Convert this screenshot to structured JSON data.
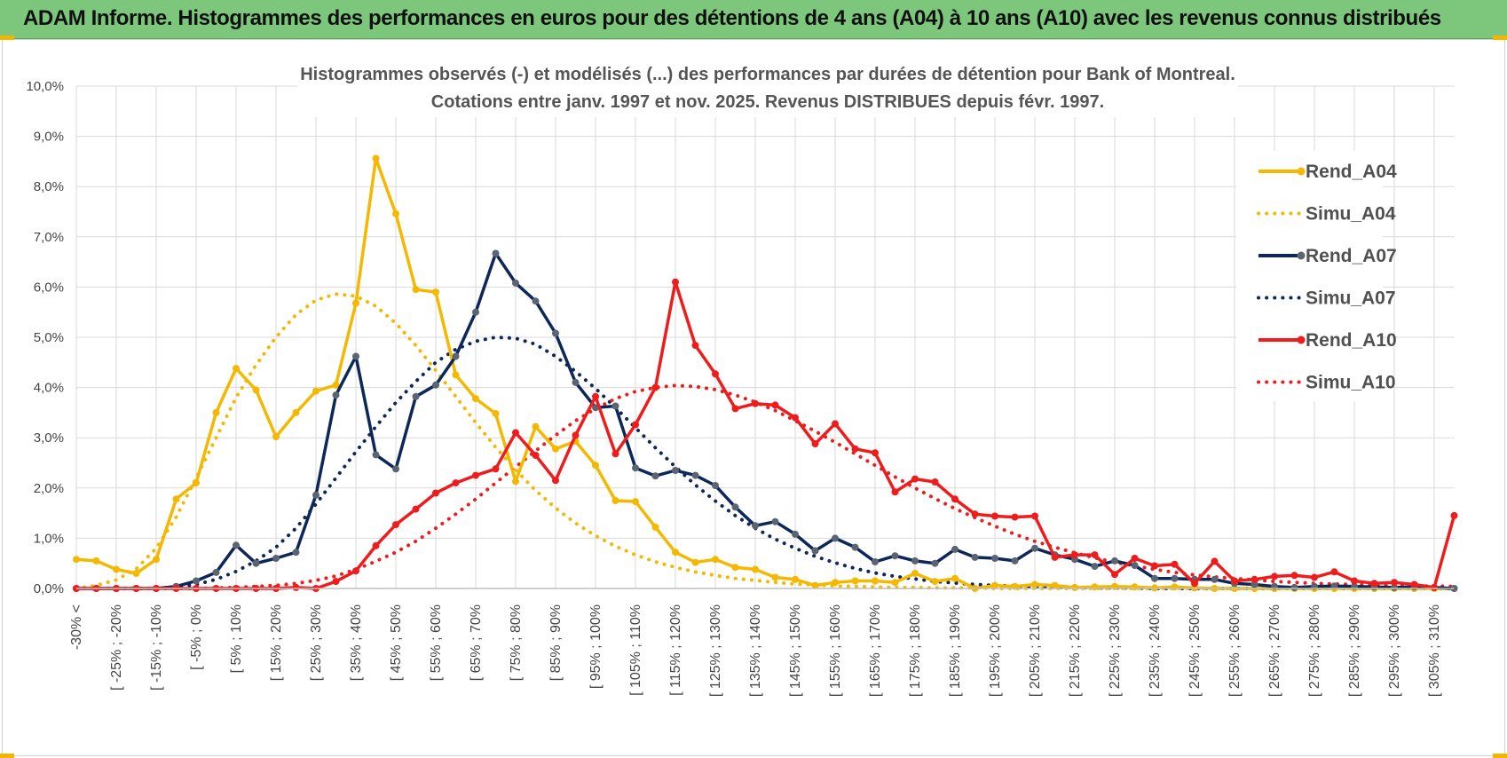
{
  "banner": {
    "title": "ADAM Informe. Histogrammes des performances en euros pour des détentions de 4 ans (A04) à 10 ans (A10) avec les revenus connus distribués",
    "background": "#7dc77d"
  },
  "chart_data": {
    "type": "line",
    "title": "Histogrammes observés (-) et modélisés (...) des performances par durées de détention pour Bank of Montreal.",
    "subtitle": "Cotations entre janv. 1997 et nov. 2025. Revenus DISTRIBUES depuis févr. 1997.",
    "xlabel": "",
    "ylabel": "",
    "ylim": [
      0,
      10
    ],
    "y_ticks": [
      "0,0%",
      "1,0%",
      "2,0%",
      "3,0%",
      "4,0%",
      "5,0%",
      "6,0%",
      "7,0%",
      "8,0%",
      "9,0%",
      "10,0%"
    ],
    "grid": true,
    "legend_position": "right",
    "x_tick_labels": [
      "-30% <",
      "[ -25% ; -20%",
      "[ -15% ; -10%",
      "[ -5% ; 0%",
      "[ 5% ; 10%",
      "[ 15% ; 20%",
      "[ 25% ; 30%",
      "[ 35% ; 40%",
      "[ 45% ; 50%",
      "[ 55% ; 60%",
      "[ 65% ; 70%",
      "[ 75% ; 80%",
      "[ 85% ; 90%",
      "[ 95% ; 100%",
      "[ 105% ; 110%",
      "[ 115% ; 120%",
      "[ 125% ; 130%",
      "[ 135% ; 140%",
      "[ 145% ; 150%",
      "[ 155% ; 160%",
      "[ 165% ; 170%",
      "[ 175% ; 180%",
      "[ 185% ; 190%",
      "[ 195% ; 200%",
      "[ 205% ; 210%",
      "[ 215% ; 220%",
      "[ 225% ; 230%",
      "[ 235% ; 240%",
      "[ 245% ; 250%",
      "[ 255% ; 260%",
      "[ 265% ; 270%",
      "[ 275% ; 280%",
      "[ 285% ; 290%",
      "[ 295% ; 300%",
      "[ 305% ; 310%"
    ],
    "n_categories": 70,
    "series": [
      {
        "name": "Rend_A04",
        "style": "solid",
        "color": "#f5b800",
        "values": [
          0.58,
          0.55,
          0.38,
          0.3,
          0.58,
          1.78,
          2.1,
          3.5,
          4.38,
          3.95,
          3.02,
          3.5,
          3.93,
          4.05,
          5.68,
          8.56,
          7.46,
          5.95,
          5.9,
          4.25,
          3.78,
          3.48,
          2.13,
          3.22,
          2.78,
          2.93,
          2.45,
          1.75,
          1.73,
          1.22,
          0.72,
          0.52,
          0.58,
          0.42,
          0.38,
          0.22,
          0.18,
          0.06,
          0.12,
          0.15,
          0.15,
          0.12,
          0.3,
          0.14,
          0.2,
          0.0,
          0.06,
          0.04,
          0.08,
          0.06,
          0.02,
          0.03,
          0.04,
          0.03,
          0.01,
          0.03,
          0.01,
          0.0,
          0.0,
          0.0,
          0.0,
          0.0,
          0.0,
          0.0,
          0.0,
          0.0,
          0.0,
          0.0,
          0.0,
          0.0
        ]
      },
      {
        "name": "Simu_A04",
        "style": "dotted",
        "color": "#f5b800",
        "values": [
          0.0,
          0.06,
          0.17,
          0.39,
          0.8,
          1.42,
          2.2,
          3.0,
          3.8,
          4.45,
          5.0,
          5.45,
          5.74,
          5.86,
          5.82,
          5.62,
          5.28,
          4.84,
          4.34,
          3.82,
          3.3,
          2.81,
          2.36,
          1.95,
          1.6,
          1.3,
          1.05,
          0.84,
          0.67,
          0.53,
          0.42,
          0.33,
          0.26,
          0.2,
          0.16,
          0.12,
          0.09,
          0.07,
          0.05,
          0.04,
          0.03,
          0.02,
          0.02,
          0.01,
          0.01,
          0.01,
          0.0,
          0.0,
          0.0,
          0.0,
          0.0,
          0.0,
          0.0,
          0.0,
          0.0,
          0.0,
          0.0,
          0.0,
          0.0,
          0.0,
          0.0,
          0.0,
          0.0,
          0.0,
          0.0,
          0.0,
          0.0,
          0.0,
          0.0,
          0.0
        ]
      },
      {
        "name": "Rend_A07",
        "style": "solid",
        "color": "#0d2758",
        "values": [
          0.0,
          0.0,
          0.0,
          0.0,
          0.0,
          0.04,
          0.15,
          0.32,
          0.86,
          0.5,
          0.6,
          0.72,
          1.86,
          3.85,
          4.62,
          2.66,
          2.38,
          3.82,
          4.05,
          4.62,
          5.5,
          6.67,
          6.08,
          5.72,
          5.08,
          4.1,
          3.6,
          3.63,
          2.4,
          2.24,
          2.35,
          2.25,
          2.05,
          1.62,
          1.25,
          1.33,
          1.08,
          0.75,
          1.0,
          0.82,
          0.53,
          0.65,
          0.55,
          0.5,
          0.78,
          0.62,
          0.6,
          0.55,
          0.8,
          0.67,
          0.58,
          0.44,
          0.55,
          0.46,
          0.2,
          0.2,
          0.18,
          0.18,
          0.1,
          0.08,
          0.04,
          0.02,
          0.04,
          0.05,
          0.04,
          0.03,
          0.02,
          0.03,
          0.02,
          0.0
        ]
      },
      {
        "name": "Simu_A07",
        "style": "dotted",
        "color": "#0d2758",
        "values": [
          0.0,
          0.0,
          0.0,
          0.0,
          0.0,
          0.03,
          0.08,
          0.18,
          0.34,
          0.55,
          0.82,
          1.2,
          1.68,
          2.2,
          2.72,
          3.22,
          3.7,
          4.12,
          4.5,
          4.76,
          4.92,
          5.0,
          4.98,
          4.86,
          4.62,
          4.32,
          3.98,
          3.6,
          3.2,
          2.8,
          2.42,
          2.06,
          1.74,
          1.45,
          1.2,
          0.98,
          0.8,
          0.64,
          0.51,
          0.4,
          0.31,
          0.24,
          0.19,
          0.14,
          0.11,
          0.08,
          0.06,
          0.05,
          0.03,
          0.02,
          0.02,
          0.01,
          0.01,
          0.01,
          0.0,
          0.0,
          0.0,
          0.0,
          0.0,
          0.0,
          0.0,
          0.0,
          0.0,
          0.0,
          0.0,
          0.0,
          0.0,
          0.0,
          0.0,
          0.0
        ]
      },
      {
        "name": "Rend_A10",
        "style": "solid",
        "color": "#ee1c1c",
        "values": [
          0.0,
          0.0,
          0.0,
          0.0,
          0.0,
          0.0,
          0.0,
          0.0,
          0.0,
          0.0,
          0.0,
          0.02,
          0.0,
          0.14,
          0.35,
          0.85,
          1.27,
          1.58,
          1.9,
          2.1,
          2.25,
          2.38,
          3.1,
          2.65,
          2.15,
          3.05,
          3.82,
          2.68,
          3.26,
          4.0,
          6.1,
          4.84,
          4.27,
          3.58,
          3.68,
          3.65,
          3.4,
          2.88,
          3.28,
          2.78,
          2.7,
          1.92,
          2.18,
          2.12,
          1.78,
          1.48,
          1.44,
          1.42,
          1.44,
          0.62,
          0.67,
          0.67,
          0.28,
          0.6,
          0.45,
          0.48,
          0.1,
          0.54,
          0.15,
          0.18,
          0.24,
          0.26,
          0.22,
          0.33,
          0.15,
          0.1,
          0.12,
          0.08,
          0.02,
          1.45
        ]
      },
      {
        "name": "Simu_A10",
        "style": "dotted",
        "color": "#ee1c1c",
        "values": [
          0.0,
          0.0,
          0.0,
          0.0,
          0.0,
          0.0,
          0.0,
          0.01,
          0.02,
          0.04,
          0.06,
          0.1,
          0.16,
          0.25,
          0.38,
          0.54,
          0.72,
          0.94,
          1.2,
          1.48,
          1.78,
          2.1,
          2.42,
          2.74,
          3.05,
          3.34,
          3.58,
          3.78,
          3.92,
          4.0,
          4.04,
          4.02,
          3.96,
          3.85,
          3.71,
          3.54,
          3.34,
          3.13,
          2.91,
          2.68,
          2.45,
          2.22,
          2.0,
          1.79,
          1.59,
          1.41,
          1.24,
          1.08,
          0.94,
          0.82,
          0.71,
          0.61,
          0.52,
          0.45,
          0.38,
          0.32,
          0.27,
          0.23,
          0.2,
          0.17,
          0.14,
          0.12,
          0.1,
          0.09,
          0.08,
          0.07,
          0.06,
          0.05,
          0.05,
          0.04
        ]
      }
    ]
  }
}
